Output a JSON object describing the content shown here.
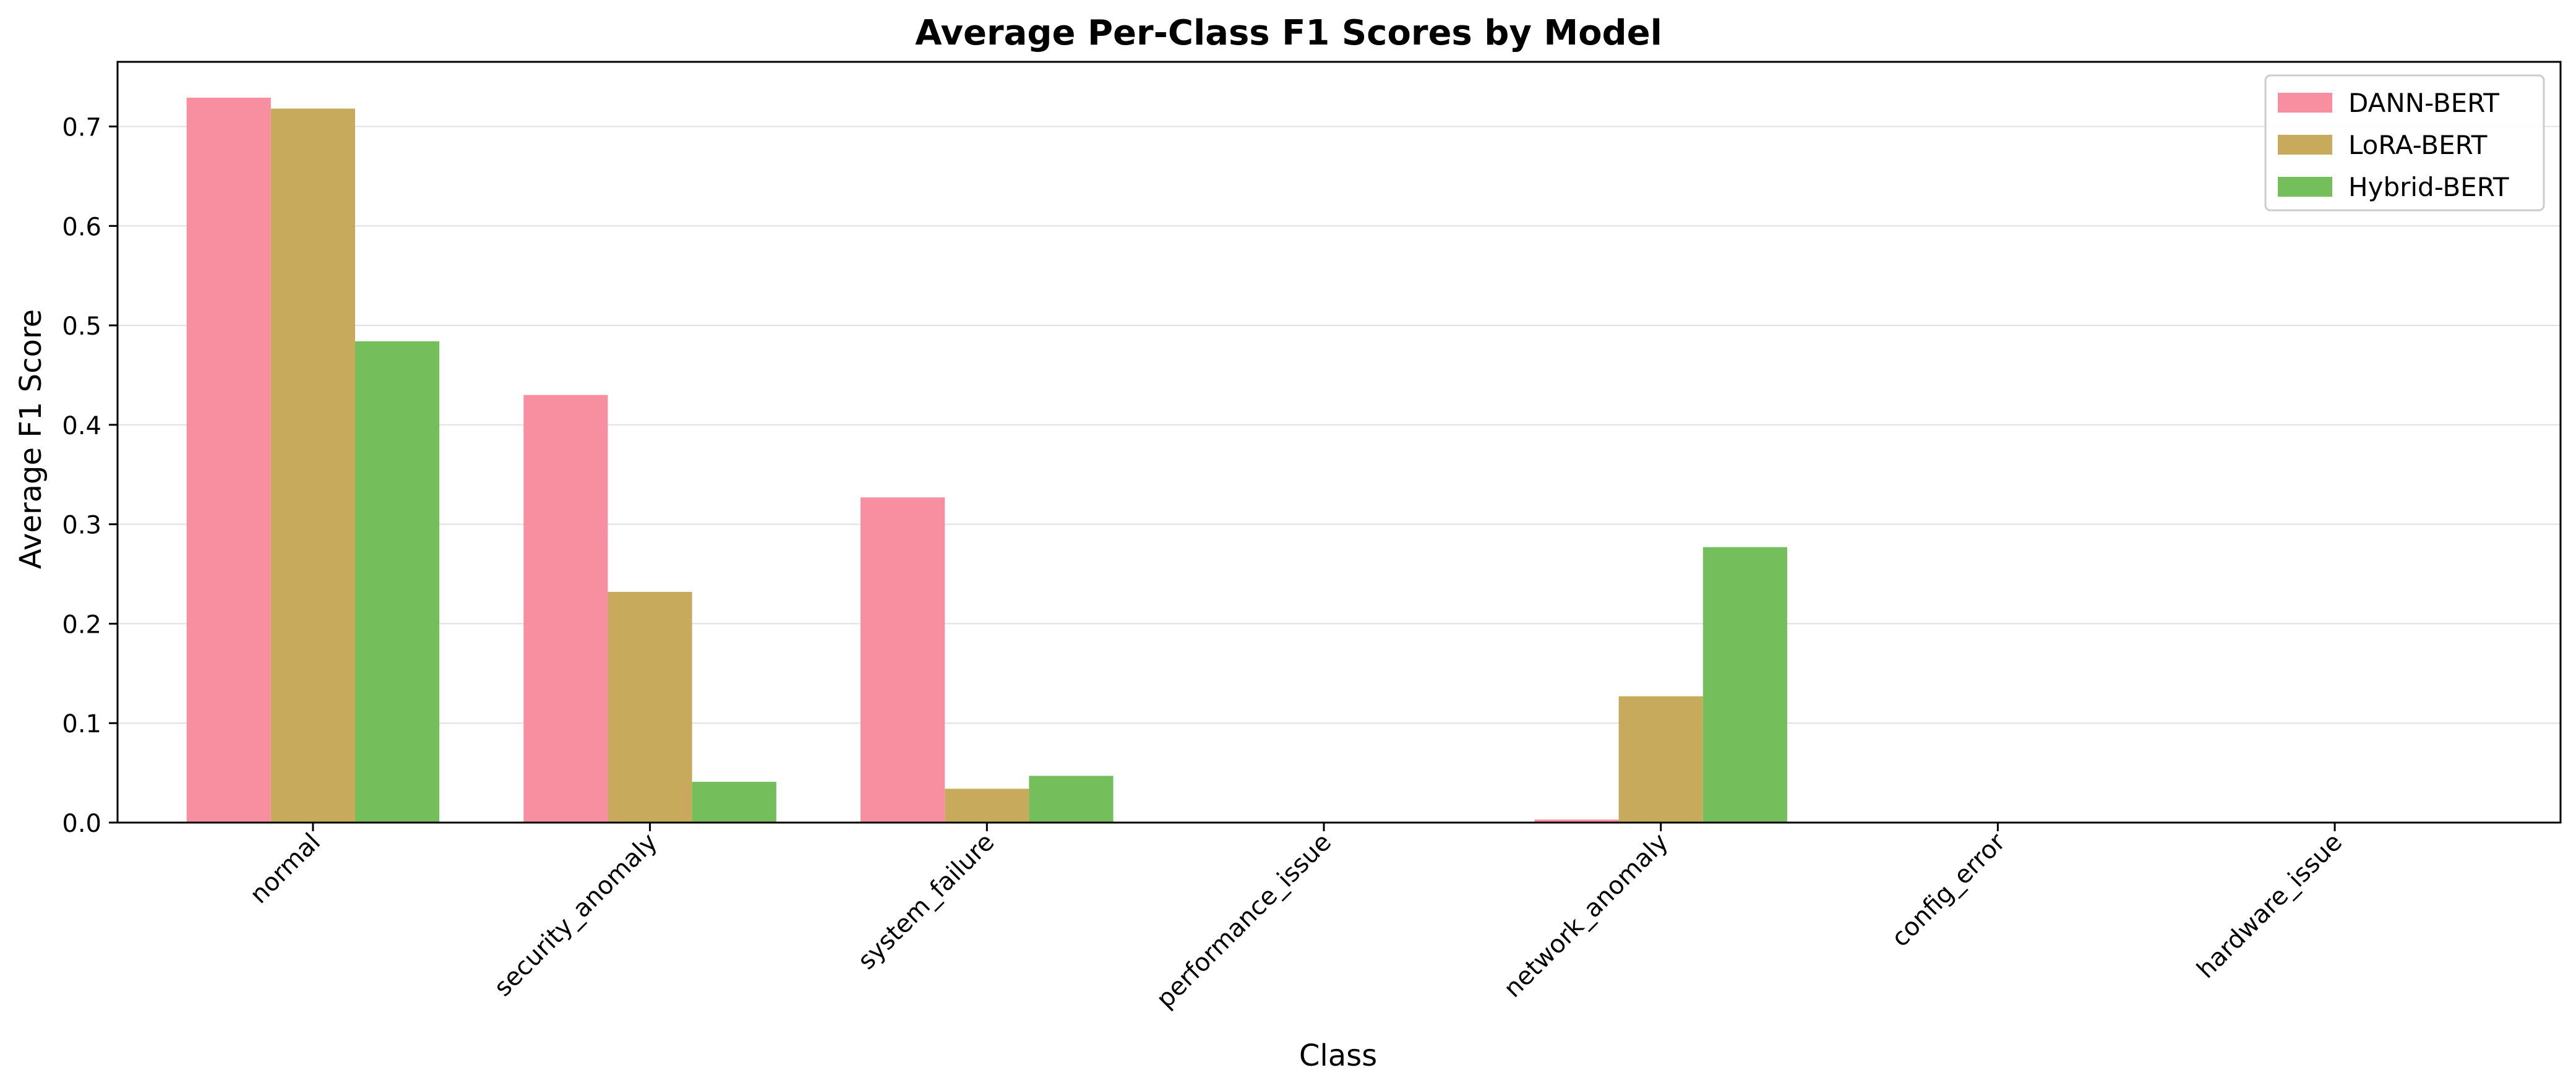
{
  "chart_data": {
    "type": "bar",
    "title": "Average Per-Class F1 Scores by Model",
    "xlabel": "Class",
    "ylabel": "Average F1 Score",
    "categories": [
      "normal",
      "security_anomaly",
      "system_failure",
      "performance_issue",
      "network_anomaly",
      "config_error",
      "hardware_issue"
    ],
    "series": [
      {
        "name": "DANN-BERT",
        "color": "#f78fa0",
        "values": [
          0.729,
          0.43,
          0.327,
          0.0,
          0.003,
          0.0,
          0.0
        ]
      },
      {
        "name": "LoRA-BERT",
        "color": "#c7aa5b",
        "values": [
          0.718,
          0.232,
          0.034,
          0.0,
          0.127,
          0.0,
          0.0
        ]
      },
      {
        "name": "Hybrid-BERT",
        "color": "#74bf5c",
        "values": [
          0.484,
          0.041,
          0.047,
          0.0,
          0.277,
          0.0,
          0.0
        ]
      }
    ],
    "ylim": [
      0,
      0.765
    ],
    "yticks": [
      "0.0",
      "0.1",
      "0.2",
      "0.3",
      "0.4",
      "0.5",
      "0.6",
      "0.7"
    ],
    "grid": "y",
    "legend_position": "top-right"
  }
}
